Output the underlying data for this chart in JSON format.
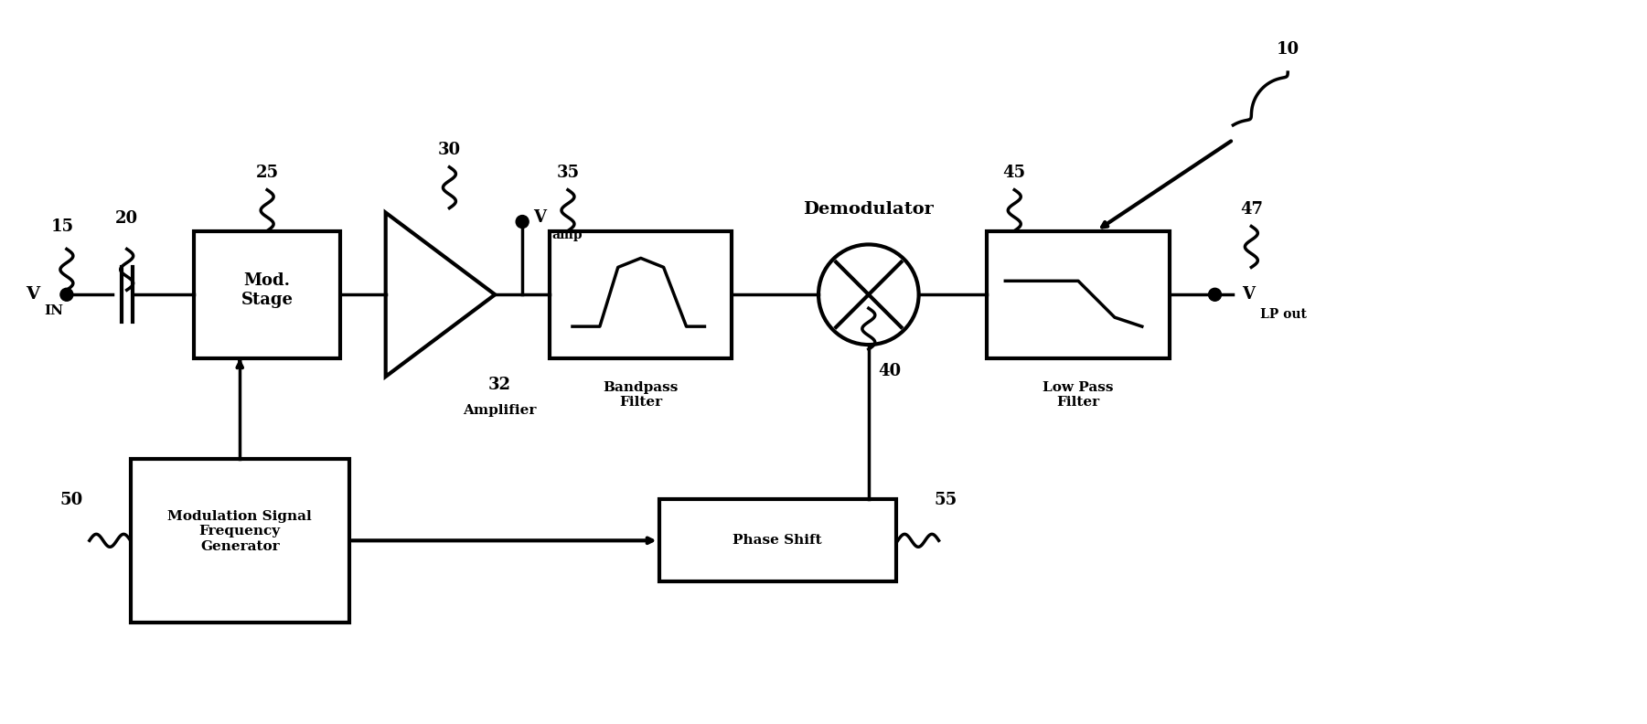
{
  "bg_color": "#ffffff",
  "line_color": "#000000",
  "line_width": 2.5,
  "figsize": [
    18.01,
    7.92
  ],
  "dpi": 100,
  "labels": {
    "VIN": "V",
    "VIN_sub": "IN",
    "Vamp": "V",
    "Vamp_sub": "amp",
    "VLP": "V",
    "VLP_sub": "LP out",
    "mod_stage": "Mod.\nStage",
    "amplifier": "Amplifier",
    "bandpass": "Bandpass\nFilter",
    "demodulator": "Demodulator",
    "lowpass": "Low Pass\nFilter",
    "mod_gen": "Modulation Signal\nFrequency\nGenerator",
    "phase_shift": "Phase Shift"
  },
  "ref_numbers": {
    "n10": "10",
    "n15": "15",
    "n20": "20",
    "n25": "25",
    "n30": "30",
    "n32": "32",
    "n35": "35",
    "n40": "40",
    "n45": "45",
    "n47": "47",
    "n50": "50",
    "n55": "55"
  }
}
